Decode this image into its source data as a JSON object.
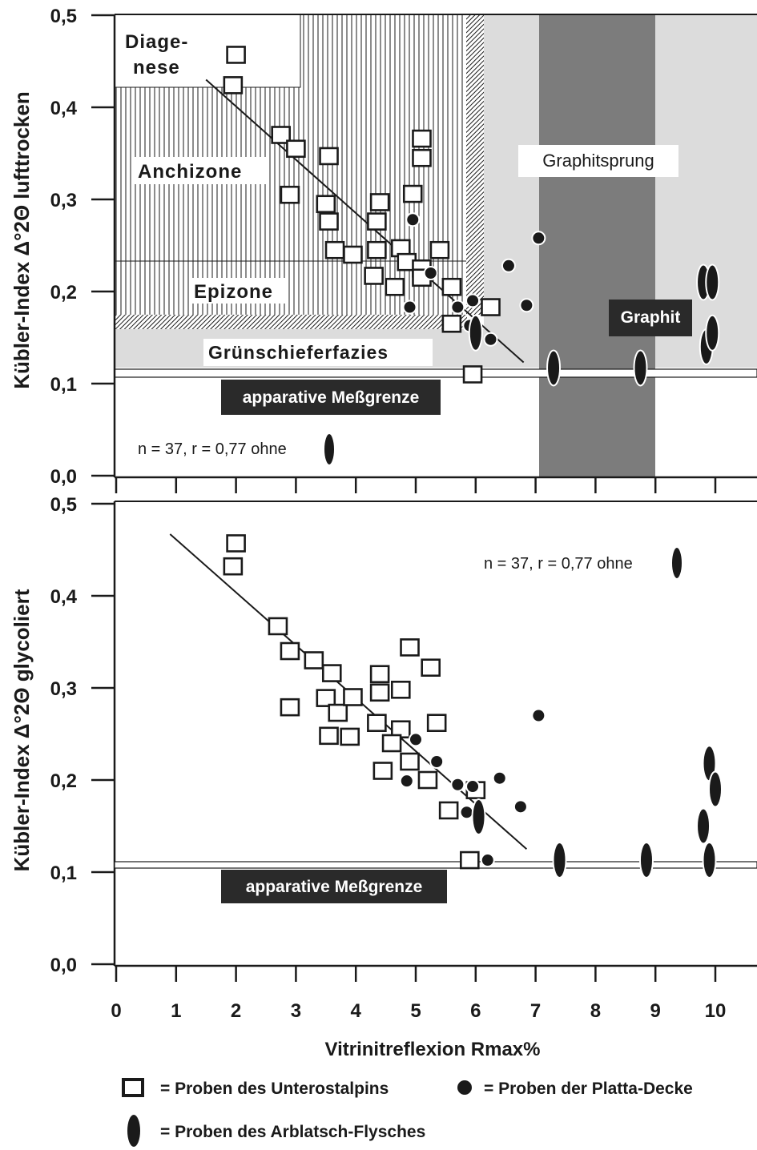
{
  "colors": {
    "ink": "#1a1a1a",
    "light_band": "#dcdcdc",
    "dark_band": "#7c7c7c",
    "label_box": "#2a2a2a",
    "label_text": "#ffffff"
  },
  "chart_data": [
    {
      "type": "scatter",
      "panel": "top",
      "ylabel": "Kübler-Index   Δ°2Θ lufttrocken",
      "xlim": [
        0,
        10.5
      ],
      "ylim": [
        0,
        0.5
      ],
      "yticks": [
        "0,0",
        "0,1",
        "0,2",
        "0,3",
        "0,4",
        "0,5"
      ],
      "grid": false,
      "zones": [
        {
          "name": "Diagenese",
          "label": "Diage-\nnese",
          "y_range": [
            0.42,
            0.5
          ],
          "x_range": [
            0,
            3.1
          ],
          "fill": "white"
        },
        {
          "name": "Anchizone",
          "label": "Anchizone",
          "y_range": [
            0.233,
            0.5
          ],
          "x_range": [
            0,
            6.05
          ],
          "fill": "vertical-lines"
        },
        {
          "name": "Epizone",
          "label": "Epizone",
          "y_range": [
            0.17,
            0.233
          ],
          "x_range": [
            0,
            6.05
          ],
          "fill": "vertical-lines"
        },
        {
          "name": "Grünschieferfazies",
          "label": "Grünschieferfazies",
          "y_range": [
            0.11,
            0.155
          ],
          "x_range": [
            0,
            10.5
          ],
          "fill": "light-gray"
        },
        {
          "name": "Graphitsprung",
          "label": "Graphitsprung",
          "x_range": [
            6.05,
            10.5
          ],
          "fill": "light-gray"
        },
        {
          "name": "Graphit",
          "label": "Graphit",
          "x_range": [
            7.0,
            9.0
          ],
          "fill": "dark-gray"
        }
      ],
      "limit_label": "apparative Meßgrenze",
      "limit_value": 0.11,
      "annotation": "n = 37, r = 0,77 ohne",
      "regression_line": {
        "x": [
          1.5,
          6.8
        ],
        "y": [
          0.43,
          0.123
        ]
      },
      "series": [
        {
          "name": "Proben des Unterostalpins",
          "marker": "square",
          "points": [
            [
              2.0,
              0.457
            ],
            [
              1.95,
              0.424
            ],
            [
              2.75,
              0.37
            ],
            [
              3.0,
              0.355
            ],
            [
              2.9,
              0.305
            ],
            [
              3.55,
              0.347
            ],
            [
              3.5,
              0.295
            ],
            [
              3.55,
              0.276
            ],
            [
              3.65,
              0.245
            ],
            [
              3.95,
              0.24
            ],
            [
              4.35,
              0.276
            ],
            [
              4.4,
              0.297
            ],
            [
              4.35,
              0.245
            ],
            [
              4.3,
              0.217
            ],
            [
              4.75,
              0.247
            ],
            [
              4.85,
              0.232
            ],
            [
              4.65,
              0.205
            ],
            [
              4.95,
              0.306
            ],
            [
              5.1,
              0.366
            ],
            [
              5.1,
              0.345
            ],
            [
              5.1,
              0.225
            ],
            [
              5.1,
              0.215
            ],
            [
              5.4,
              0.245
            ],
            [
              5.6,
              0.205
            ],
            [
              5.6,
              0.165
            ],
            [
              6.25,
              0.183
            ],
            [
              5.95,
              0.11
            ]
          ]
        },
        {
          "name": "Proben der Platta-Decke",
          "marker": "circle",
          "points": [
            [
              4.95,
              0.278
            ],
            [
              5.25,
              0.22
            ],
            [
              4.9,
              0.183
            ],
            [
              5.7,
              0.183
            ],
            [
              5.95,
              0.19
            ],
            [
              5.9,
              0.163
            ],
            [
              6.25,
              0.148
            ],
            [
              6.55,
              0.228
            ],
            [
              6.85,
              0.185
            ],
            [
              7.05,
              0.258
            ]
          ]
        },
        {
          "name": "Proben des Arblatsch-Flysches",
          "marker": "ellipse",
          "points": [
            [
              6.0,
              0.155
            ],
            [
              7.3,
              0.117
            ],
            [
              8.75,
              0.117
            ],
            [
              9.8,
              0.21
            ],
            [
              9.95,
              0.21
            ],
            [
              9.85,
              0.14
            ],
            [
              9.95,
              0.155
            ]
          ]
        }
      ]
    },
    {
      "type": "scatter",
      "panel": "bottom",
      "ylabel": "Kübler-Index   Δ°2Θ glycoliert",
      "xlabel": "Vitrinitreflexion Rmax%",
      "xlim": [
        0,
        10.5
      ],
      "ylim": [
        0,
        0.5
      ],
      "xticks": [
        "0",
        "1",
        "2",
        "3",
        "4",
        "5",
        "6",
        "7",
        "8",
        "9",
        "10"
      ],
      "yticks": [
        "0,0",
        "0,1",
        "0,2",
        "0,3",
        "0,4",
        "0,5"
      ],
      "grid": false,
      "limit_label": "apparative Meßgrenze",
      "limit_value": 0.11,
      "annotation": "n = 37, r = 0,77 ohne",
      "regression_line": {
        "x": [
          0.9,
          6.85
        ],
        "y": [
          0.467,
          0.125
        ]
      },
      "series": [
        {
          "name": "Proben des Unterostalpins",
          "marker": "square",
          "points": [
            [
              2.0,
              0.457
            ],
            [
              1.95,
              0.432
            ],
            [
              2.7,
              0.367
            ],
            [
              2.9,
              0.34
            ],
            [
              3.3,
              0.33
            ],
            [
              3.6,
              0.316
            ],
            [
              3.5,
              0.289
            ],
            [
              3.7,
              0.273
            ],
            [
              3.95,
              0.29
            ],
            [
              3.9,
              0.247
            ],
            [
              3.55,
              0.248
            ],
            [
              2.9,
              0.279
            ],
            [
              4.35,
              0.262
            ],
            [
              4.4,
              0.315
            ],
            [
              4.4,
              0.295
            ],
            [
              4.75,
              0.298
            ],
            [
              4.75,
              0.255
            ],
            [
              4.6,
              0.24
            ],
            [
              4.45,
              0.21
            ],
            [
              4.9,
              0.22
            ],
            [
              4.9,
              0.344
            ],
            [
              5.25,
              0.322
            ],
            [
              5.35,
              0.262
            ],
            [
              5.2,
              0.2
            ],
            [
              5.55,
              0.167
            ],
            [
              6.0,
              0.189
            ],
            [
              5.9,
              0.113
            ]
          ]
        },
        {
          "name": "Proben der Platta-Decke",
          "marker": "circle",
          "points": [
            [
              5.0,
              0.244
            ],
            [
              5.35,
              0.22
            ],
            [
              4.85,
              0.199
            ],
            [
              5.7,
              0.195
            ],
            [
              5.95,
              0.193
            ],
            [
              5.85,
              0.165
            ],
            [
              6.4,
              0.202
            ],
            [
              6.75,
              0.171
            ],
            [
              7.05,
              0.27
            ],
            [
              6.2,
              0.113
            ]
          ]
        },
        {
          "name": "Proben des Arblatsch-Flysches",
          "marker": "ellipse",
          "points": [
            [
              6.05,
              0.16
            ],
            [
              7.4,
              0.113
            ],
            [
              8.85,
              0.113
            ],
            [
              9.9,
              0.218
            ],
            [
              10.0,
              0.19
            ],
            [
              9.8,
              0.15
            ],
            [
              9.9,
              0.113
            ]
          ]
        }
      ]
    }
  ],
  "legend": {
    "items": [
      {
        "marker": "square",
        "label": "= Proben des Unterostalpins"
      },
      {
        "marker": "circle",
        "label": "= Proben der Platta-Decke"
      },
      {
        "marker": "ellipse",
        "label": "= Proben des Arblatsch-Flysches"
      }
    ]
  }
}
